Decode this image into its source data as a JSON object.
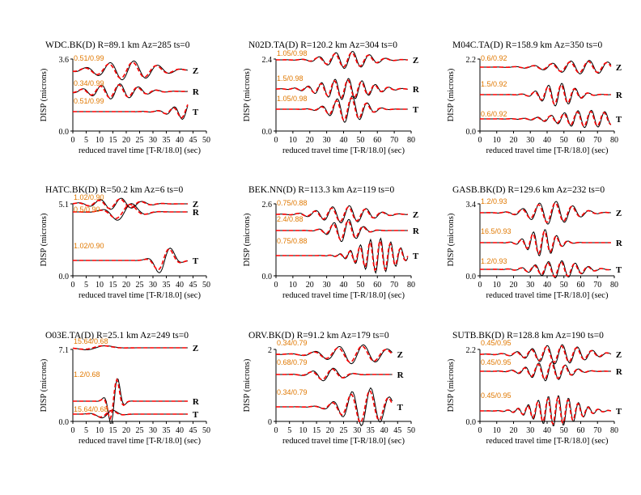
{
  "chart_data": [
    {
      "type": "line",
      "title": "WDC.BK(D) R=89.1 km Az=285 ts=0",
      "xlabel": "reduced travel time [T-R/18.0] (sec)",
      "ylabel": "DISP (microns)",
      "xlim": [
        0,
        50
      ],
      "xticks": [
        0,
        5,
        10,
        15,
        20,
        25,
        30,
        35,
        40,
        45,
        50
      ],
      "ylim_labels": [
        "0.0",
        "3.6"
      ],
      "series": [
        {
          "name": "Z",
          "label": "0.51/0.99"
        },
        {
          "name": "R",
          "label": "0.34/0.99"
        },
        {
          "name": "T",
          "label": "0.51/0.99"
        }
      ]
    },
    {
      "type": "line",
      "title": "N02D.TA(D) R=120.2 km Az=304 ts=0",
      "xlabel": "reduced travel time [T-R/18.0] (sec)",
      "ylabel": "DISP (microns)",
      "xlim": [
        0,
        80
      ],
      "xticks": [
        0,
        10,
        20,
        30,
        40,
        50,
        60,
        70,
        80
      ],
      "ylim_labels": [
        "0.0",
        "2.4"
      ],
      "series": [
        {
          "name": "Z",
          "label": "1.05/0.98"
        },
        {
          "name": "R",
          "label": "1.5/0.98"
        },
        {
          "name": "T",
          "label": "1.05/0.98"
        }
      ]
    },
    {
      "type": "line",
      "title": "M04C.TA(D) R=158.9 km Az=350 ts=0",
      "xlabel": "reduced travel time [T-R/18.0] (sec)",
      "ylabel": "DISP (microns)",
      "xlim": [
        0,
        80
      ],
      "xticks": [
        0,
        10,
        20,
        30,
        40,
        50,
        60,
        70,
        80
      ],
      "ylim_labels": [
        "0.0",
        "2.2"
      ],
      "series": [
        {
          "name": "Z",
          "label": "0.6/0.92"
        },
        {
          "name": "R",
          "label": "1.5/0.92"
        },
        {
          "name": "T",
          "label": "0.6/0.92"
        }
      ]
    },
    {
      "type": "line",
      "title": "HATC.BK(D) R=50.2 km Az=6 ts=0",
      "xlabel": "reduced travel time [T-R/18.0] (sec)",
      "ylabel": "DISP (microns)",
      "xlim": [
        0,
        50
      ],
      "xticks": [
        0,
        5,
        10,
        15,
        20,
        25,
        30,
        35,
        40,
        45,
        50
      ],
      "ylim_labels": [
        "0.0",
        "5.1"
      ],
      "series": [
        {
          "name": "Z",
          "label": "1.02/0.90"
        },
        {
          "name": "R",
          "label": "0.5/0.90"
        },
        {
          "name": "T",
          "label": "1.02/0.90"
        }
      ]
    },
    {
      "type": "line",
      "title": "BEK.NN(D) R=113.3 km Az=119 ts=0",
      "xlabel": "reduced travel time [T-R/18.0] (sec)",
      "ylabel": "DISP (microns)",
      "xlim": [
        0,
        80
      ],
      "xticks": [
        0,
        10,
        20,
        30,
        40,
        50,
        60,
        70,
        80
      ],
      "ylim_labels": [
        "0.0",
        "2.6"
      ],
      "series": [
        {
          "name": "Z",
          "label": "0.75/0.88"
        },
        {
          "name": "R",
          "label": "2.4/0.88"
        },
        {
          "name": "T",
          "label": "0.75/0.88"
        }
      ]
    },
    {
      "type": "line",
      "title": "GASB.BK(D) R=129.6 km Az=232 ts=0",
      "xlabel": "reduced travel time [T-R/18.0] (sec)",
      "ylabel": "DISP (microns)",
      "xlim": [
        0,
        80
      ],
      "xticks": [
        0,
        10,
        20,
        30,
        40,
        50,
        60,
        70,
        80
      ],
      "ylim_labels": [
        "0.0",
        "3.4"
      ],
      "series": [
        {
          "name": "Z",
          "label": "1.2/0.93"
        },
        {
          "name": "R",
          "label": "16.5/0.93"
        },
        {
          "name": "T",
          "label": "1.2/0.93"
        }
      ]
    },
    {
      "type": "line",
      "title": "O03E.TA(D) R=25.1 km Az=249 ts=0",
      "xlabel": "reduced travel time [T-R/18.0] (sec)",
      "ylabel": "DISP (microns)",
      "xlim": [
        0,
        50
      ],
      "xticks": [
        0,
        5,
        10,
        15,
        20,
        25,
        30,
        35,
        40,
        45,
        50
      ],
      "ylim_labels": [
        "0.0",
        "7.1"
      ],
      "series": [
        {
          "name": "Z",
          "label": "15.64/0.68"
        },
        {
          "name": "R",
          "label": "1.2/0.68"
        },
        {
          "name": "T",
          "label": "15.64/0.68"
        }
      ]
    },
    {
      "type": "line",
      "title": "ORV.BK(D) R=91.2 km Az=179 ts=0",
      "xlabel": "reduced travel time [T-R/18.0] (sec)",
      "ylabel": "DISP (microns)",
      "xlim": [
        0,
        50
      ],
      "xticks": [
        0,
        5,
        10,
        15,
        20,
        25,
        30,
        35,
        40,
        45,
        50
      ],
      "ylim_labels": [
        "0",
        "2"
      ],
      "series": [
        {
          "name": "Z",
          "label": "0.34/0.79"
        },
        {
          "name": "R",
          "label": "0.68/0.79"
        },
        {
          "name": "T",
          "label": "0.34/0.79"
        }
      ]
    },
    {
      "type": "line",
      "title": "SUTB.BK(D) R=128.8 km Az=190 ts=0",
      "xlabel": "reduced travel time [T-R/18.0] (sec)",
      "ylabel": "DISP (microns)",
      "xlim": [
        0,
        80
      ],
      "xticks": [
        0,
        10,
        20,
        30,
        40,
        50,
        60,
        70,
        80
      ],
      "ylim_labels": [
        "0.0",
        "2.2"
      ],
      "series": [
        {
          "name": "Z",
          "label": "0.45/0.95"
        },
        {
          "name": "R",
          "label": "0.45/0.95"
        },
        {
          "name": "T",
          "label": "0.45/0.95"
        }
      ]
    }
  ],
  "colors": {
    "observed": "#000000",
    "synthetic": "#ff0000",
    "fit_label": "#e07800"
  }
}
